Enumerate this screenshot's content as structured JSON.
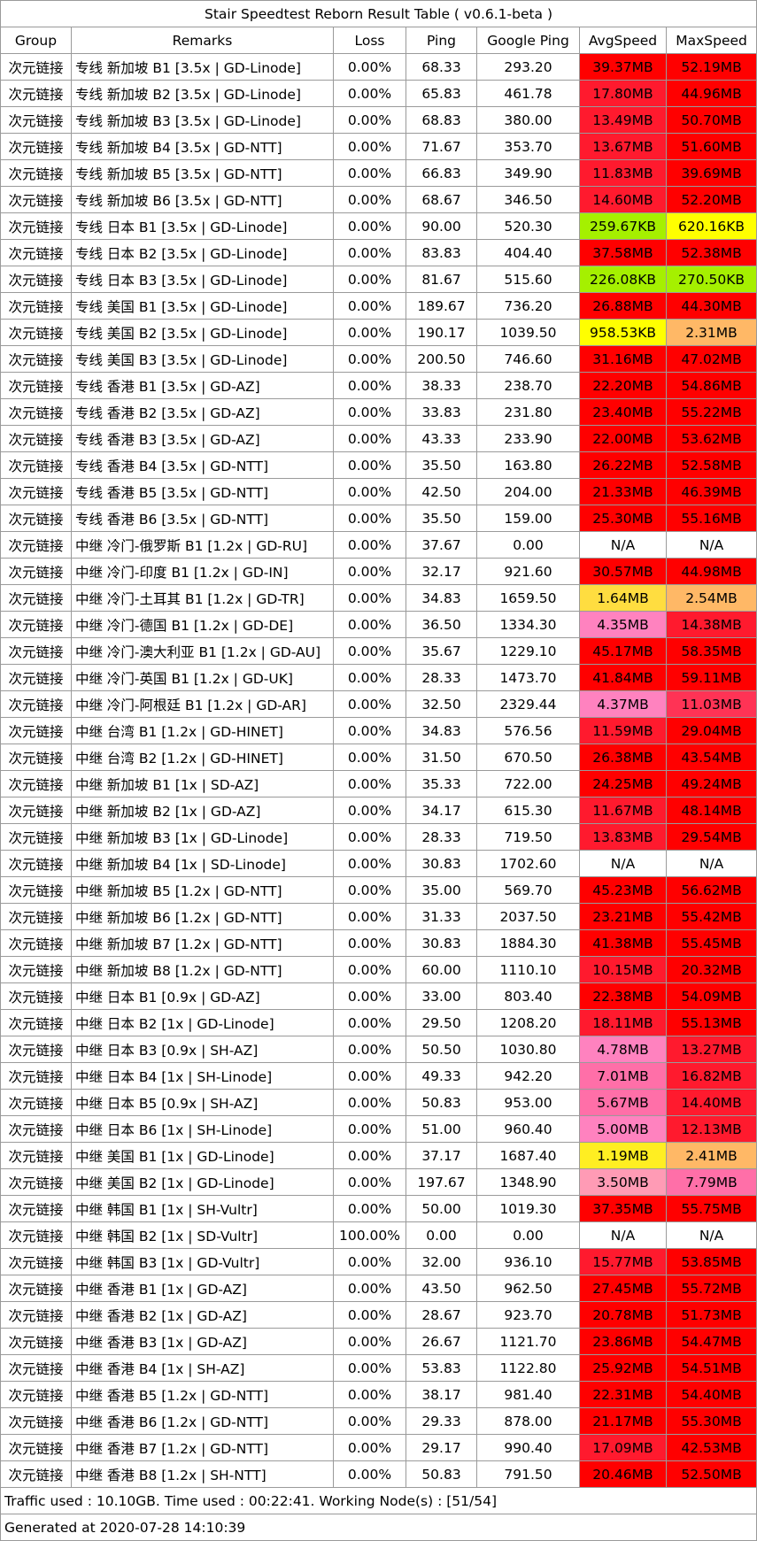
{
  "title": "Stair Speedtest Reborn Result Table ( v0.6.1-beta )",
  "headers": [
    "Group",
    "Remarks",
    "Loss",
    "Ping",
    "Google Ping",
    "AvgSpeed",
    "MaxSpeed"
  ],
  "colors": {
    "red": "#ff0000",
    "red2": "#ff1a2e",
    "green": "#a5f000",
    "yellow": "#ffff00",
    "gold": "#ffdd40",
    "orange": "#ffb866",
    "pink": "#ff82bf",
    "pink2": "#ff6fa8",
    "lightpink": "#ff9bb5"
  },
  "rows": [
    {
      "group": "次元链接",
      "remarks": "专线 新加坡 B1 [3.5x | GD-Linode]",
      "loss": "0.00%",
      "ping": "68.33",
      "gping": "293.20",
      "avg": "39.37MB",
      "avg_c": "#ff0000",
      "max": "52.19MB",
      "max_c": "#ff0000"
    },
    {
      "group": "次元链接",
      "remarks": "专线 新加坡 B2 [3.5x | GD-Linode]",
      "loss": "0.00%",
      "ping": "65.83",
      "gping": "461.78",
      "avg": "17.80MB",
      "avg_c": "#ff1a2e",
      "max": "44.96MB",
      "max_c": "#ff0000"
    },
    {
      "group": "次元链接",
      "remarks": "专线 新加坡 B3 [3.5x | GD-Linode]",
      "loss": "0.00%",
      "ping": "68.83",
      "gping": "380.00",
      "avg": "13.49MB",
      "avg_c": "#ff1a2e",
      "max": "50.70MB",
      "max_c": "#ff0000"
    },
    {
      "group": "次元链接",
      "remarks": "专线 新加坡 B4 [3.5x | GD-NTT]",
      "loss": "0.00%",
      "ping": "71.67",
      "gping": "353.70",
      "avg": "13.67MB",
      "avg_c": "#ff1a2e",
      "max": "51.60MB",
      "max_c": "#ff0000"
    },
    {
      "group": "次元链接",
      "remarks": "专线 新加坡 B5 [3.5x | GD-NTT]",
      "loss": "0.00%",
      "ping": "66.83",
      "gping": "349.90",
      "avg": "11.83MB",
      "avg_c": "#ff1a2e",
      "max": "39.69MB",
      "max_c": "#ff0000"
    },
    {
      "group": "次元链接",
      "remarks": "专线 新加坡 B6 [3.5x | GD-NTT]",
      "loss": "0.00%",
      "ping": "68.67",
      "gping": "346.50",
      "avg": "14.60MB",
      "avg_c": "#ff1a2e",
      "max": "52.20MB",
      "max_c": "#ff0000"
    },
    {
      "group": "次元链接",
      "remarks": "专线 日本 B1 [3.5x | GD-Linode]",
      "loss": "0.00%",
      "ping": "90.00",
      "gping": "520.30",
      "avg": "259.67KB",
      "avg_c": "#a5f000",
      "max": "620.16KB",
      "max_c": "#ffff00"
    },
    {
      "group": "次元链接",
      "remarks": "专线 日本 B2 [3.5x | GD-Linode]",
      "loss": "0.00%",
      "ping": "83.83",
      "gping": "404.40",
      "avg": "37.58MB",
      "avg_c": "#ff0000",
      "max": "52.38MB",
      "max_c": "#ff0000"
    },
    {
      "group": "次元链接",
      "remarks": "专线 日本 B3 [3.5x | GD-Linode]",
      "loss": "0.00%",
      "ping": "81.67",
      "gping": "515.60",
      "avg": "226.08KB",
      "avg_c": "#a5f000",
      "max": "270.50KB",
      "max_c": "#a5f000"
    },
    {
      "group": "次元链接",
      "remarks": "专线 美国 B1 [3.5x | GD-Linode]",
      "loss": "0.00%",
      "ping": "189.67",
      "gping": "736.20",
      "avg": "26.88MB",
      "avg_c": "#ff0000",
      "max": "44.30MB",
      "max_c": "#ff0000"
    },
    {
      "group": "次元链接",
      "remarks": "专线 美国 B2 [3.5x | GD-Linode]",
      "loss": "0.00%",
      "ping": "190.17",
      "gping": "1039.50",
      "avg": "958.53KB",
      "avg_c": "#ffff00",
      "max": "2.31MB",
      "max_c": "#ffb866"
    },
    {
      "group": "次元链接",
      "remarks": "专线 美国 B3 [3.5x | GD-Linode]",
      "loss": "0.00%",
      "ping": "200.50",
      "gping": "746.60",
      "avg": "31.16MB",
      "avg_c": "#ff0000",
      "max": "47.02MB",
      "max_c": "#ff0000"
    },
    {
      "group": "次元链接",
      "remarks": "专线 香港 B1 [3.5x | GD-AZ]",
      "loss": "0.00%",
      "ping": "38.33",
      "gping": "238.70",
      "avg": "22.20MB",
      "avg_c": "#ff0000",
      "max": "54.86MB",
      "max_c": "#ff0000"
    },
    {
      "group": "次元链接",
      "remarks": "专线 香港 B2 [3.5x | GD-AZ]",
      "loss": "0.00%",
      "ping": "33.83",
      "gping": "231.80",
      "avg": "23.40MB",
      "avg_c": "#ff0000",
      "max": "55.22MB",
      "max_c": "#ff0000"
    },
    {
      "group": "次元链接",
      "remarks": "专线 香港 B3 [3.5x | GD-AZ]",
      "loss": "0.00%",
      "ping": "43.33",
      "gping": "233.90",
      "avg": "22.00MB",
      "avg_c": "#ff0000",
      "max": "53.62MB",
      "max_c": "#ff0000"
    },
    {
      "group": "次元链接",
      "remarks": "专线 香港 B4 [3.5x | GD-NTT]",
      "loss": "0.00%",
      "ping": "35.50",
      "gping": "163.80",
      "avg": "26.22MB",
      "avg_c": "#ff0000",
      "max": "52.58MB",
      "max_c": "#ff0000"
    },
    {
      "group": "次元链接",
      "remarks": "专线 香港 B5 [3.5x | GD-NTT]",
      "loss": "0.00%",
      "ping": "42.50",
      "gping": "204.00",
      "avg": "21.33MB",
      "avg_c": "#ff0000",
      "max": "46.39MB",
      "max_c": "#ff0000"
    },
    {
      "group": "次元链接",
      "remarks": "专线 香港 B6 [3.5x | GD-NTT]",
      "loss": "0.00%",
      "ping": "35.50",
      "gping": "159.00",
      "avg": "25.30MB",
      "avg_c": "#ff0000",
      "max": "55.16MB",
      "max_c": "#ff0000"
    },
    {
      "group": "次元链接",
      "remarks": "中继 冷门-俄罗斯 B1 [1.2x | GD-RU]",
      "loss": "0.00%",
      "ping": "37.67",
      "gping": "0.00",
      "avg": "N/A",
      "avg_c": "#ffffff",
      "max": "N/A",
      "max_c": "#ffffff"
    },
    {
      "group": "次元链接",
      "remarks": "中继 冷门-印度 B1 [1.2x | GD-IN]",
      "loss": "0.00%",
      "ping": "32.17",
      "gping": "921.60",
      "avg": "30.57MB",
      "avg_c": "#ff0000",
      "max": "44.98MB",
      "max_c": "#ff0000"
    },
    {
      "group": "次元链接",
      "remarks": "中继 冷门-土耳其 B1 [1.2x | GD-TR]",
      "loss": "0.00%",
      "ping": "34.83",
      "gping": "1659.50",
      "avg": "1.64MB",
      "avg_c": "#ffdd40",
      "max": "2.54MB",
      "max_c": "#ffb866"
    },
    {
      "group": "次元链接",
      "remarks": "中继 冷门-德国 B1 [1.2x | GD-DE]",
      "loss": "0.00%",
      "ping": "36.50",
      "gping": "1334.30",
      "avg": "4.35MB",
      "avg_c": "#ff82bf",
      "max": "14.38MB",
      "max_c": "#ff1a2e"
    },
    {
      "group": "次元链接",
      "remarks": "中继 冷门-澳大利亚 B1 [1.2x | GD-AU]",
      "loss": "0.00%",
      "ping": "35.67",
      "gping": "1229.10",
      "avg": "45.17MB",
      "avg_c": "#ff0000",
      "max": "58.35MB",
      "max_c": "#ff0000"
    },
    {
      "group": "次元链接",
      "remarks": "中继 冷门-英国 B1 [1.2x | GD-UK]",
      "loss": "0.00%",
      "ping": "28.33",
      "gping": "1473.70",
      "avg": "41.84MB",
      "avg_c": "#ff0000",
      "max": "59.11MB",
      "max_c": "#ff0000"
    },
    {
      "group": "次元链接",
      "remarks": "中继 冷门-阿根廷 B1 [1.2x | GD-AR]",
      "loss": "0.00%",
      "ping": "32.50",
      "gping": "2329.44",
      "avg": "4.37MB",
      "avg_c": "#ff82bf",
      "max": "11.03MB",
      "max_c": "#ff3355"
    },
    {
      "group": "次元链接",
      "remarks": "中继 台湾 B1 [1.2x | GD-HINET]",
      "loss": "0.00%",
      "ping": "34.83",
      "gping": "576.56",
      "avg": "11.59MB",
      "avg_c": "#ff1a2e",
      "max": "29.04MB",
      "max_c": "#ff0000"
    },
    {
      "group": "次元链接",
      "remarks": "中继 台湾 B2 [1.2x | GD-HINET]",
      "loss": "0.00%",
      "ping": "31.50",
      "gping": "670.50",
      "avg": "26.38MB",
      "avg_c": "#ff0000",
      "max": "43.54MB",
      "max_c": "#ff0000"
    },
    {
      "group": "次元链接",
      "remarks": "中继 新加坡 B1 [1x | SD-AZ]",
      "loss": "0.00%",
      "ping": "35.33",
      "gping": "722.00",
      "avg": "24.25MB",
      "avg_c": "#ff0000",
      "max": "49.24MB",
      "max_c": "#ff0000"
    },
    {
      "group": "次元链接",
      "remarks": "中继 新加坡 B2 [1x | GD-AZ]",
      "loss": "0.00%",
      "ping": "34.17",
      "gping": "615.30",
      "avg": "11.67MB",
      "avg_c": "#ff1a2e",
      "max": "48.14MB",
      "max_c": "#ff0000"
    },
    {
      "group": "次元链接",
      "remarks": "中继 新加坡 B3 [1x | GD-Linode]",
      "loss": "0.00%",
      "ping": "28.33",
      "gping": "719.50",
      "avg": "13.83MB",
      "avg_c": "#ff1a2e",
      "max": "29.54MB",
      "max_c": "#ff0000"
    },
    {
      "group": "次元链接",
      "remarks": "中继 新加坡 B4 [1x | SD-Linode]",
      "loss": "0.00%",
      "ping": "30.83",
      "gping": "1702.60",
      "avg": "N/A",
      "avg_c": "#ffffff",
      "max": "N/A",
      "max_c": "#ffffff"
    },
    {
      "group": "次元链接",
      "remarks": "中继 新加坡 B5 [1.2x | GD-NTT]",
      "loss": "0.00%",
      "ping": "35.00",
      "gping": "569.70",
      "avg": "45.23MB",
      "avg_c": "#ff0000",
      "max": "56.62MB",
      "max_c": "#ff0000"
    },
    {
      "group": "次元链接",
      "remarks": "中继 新加坡 B6 [1.2x | GD-NTT]",
      "loss": "0.00%",
      "ping": "31.33",
      "gping": "2037.50",
      "avg": "23.21MB",
      "avg_c": "#ff0000",
      "max": "55.42MB",
      "max_c": "#ff0000"
    },
    {
      "group": "次元链接",
      "remarks": "中继 新加坡 B7 [1.2x | GD-NTT]",
      "loss": "0.00%",
      "ping": "30.83",
      "gping": "1884.30",
      "avg": "41.38MB",
      "avg_c": "#ff0000",
      "max": "55.45MB",
      "max_c": "#ff0000"
    },
    {
      "group": "次元链接",
      "remarks": "中继 新加坡 B8 [1.2x | GD-NTT]",
      "loss": "0.00%",
      "ping": "60.00",
      "gping": "1110.10",
      "avg": "10.15MB",
      "avg_c": "#ff1a2e",
      "max": "20.32MB",
      "max_c": "#ff0000"
    },
    {
      "group": "次元链接",
      "remarks": "中继 日本 B1 [0.9x | GD-AZ]",
      "loss": "0.00%",
      "ping": "33.00",
      "gping": "803.40",
      "avg": "22.38MB",
      "avg_c": "#ff0000",
      "max": "54.09MB",
      "max_c": "#ff0000"
    },
    {
      "group": "次元链接",
      "remarks": "中继 日本 B2 [1x | GD-Linode]",
      "loss": "0.00%",
      "ping": "29.50",
      "gping": "1208.20",
      "avg": "18.11MB",
      "avg_c": "#ff1a2e",
      "max": "55.13MB",
      "max_c": "#ff0000"
    },
    {
      "group": "次元链接",
      "remarks": "中继 日本 B3 [0.9x | SH-AZ]",
      "loss": "0.00%",
      "ping": "50.50",
      "gping": "1030.80",
      "avg": "4.78MB",
      "avg_c": "#ff82bf",
      "max": "13.27MB",
      "max_c": "#ff1a2e"
    },
    {
      "group": "次元链接",
      "remarks": "中继 日本 B4 [1x | SH-Linode]",
      "loss": "0.00%",
      "ping": "49.33",
      "gping": "942.20",
      "avg": "7.01MB",
      "avg_c": "#ff6fa8",
      "max": "16.82MB",
      "max_c": "#ff1a2e"
    },
    {
      "group": "次元链接",
      "remarks": "中继 日本 B5 [0.9x | SH-AZ]",
      "loss": "0.00%",
      "ping": "50.83",
      "gping": "953.00",
      "avg": "5.67MB",
      "avg_c": "#ff6fa8",
      "max": "14.40MB",
      "max_c": "#ff1a2e"
    },
    {
      "group": "次元链接",
      "remarks": "中继 日本 B6 [1x | SH-Linode]",
      "loss": "0.00%",
      "ping": "51.00",
      "gping": "960.40",
      "avg": "5.00MB",
      "avg_c": "#ff82bf",
      "max": "12.13MB",
      "max_c": "#ff1a2e"
    },
    {
      "group": "次元链接",
      "remarks": "中继 美国 B1 [1x | GD-Linode]",
      "loss": "0.00%",
      "ping": "37.17",
      "gping": "1687.40",
      "avg": "1.19MB",
      "avg_c": "#ffee22",
      "max": "2.41MB",
      "max_c": "#ffb866"
    },
    {
      "group": "次元链接",
      "remarks": "中继 美国 B2 [1x | GD-Linode]",
      "loss": "0.00%",
      "ping": "197.67",
      "gping": "1348.90",
      "avg": "3.50MB",
      "avg_c": "#ff9bb5",
      "max": "7.79MB",
      "max_c": "#ff6fa8"
    },
    {
      "group": "次元链接",
      "remarks": "中继 韩国 B1 [1x | SH-Vultr]",
      "loss": "0.00%",
      "ping": "50.00",
      "gping": "1019.30",
      "avg": "37.35MB",
      "avg_c": "#ff0000",
      "max": "55.75MB",
      "max_c": "#ff0000"
    },
    {
      "group": "次元链接",
      "remarks": "中继 韩国 B2 [1x | SD-Vultr]",
      "loss": "100.00%",
      "ping": "0.00",
      "gping": "0.00",
      "avg": "N/A",
      "avg_c": "#ffffff",
      "max": "N/A",
      "max_c": "#ffffff"
    },
    {
      "group": "次元链接",
      "remarks": "中继 韩国 B3 [1x | GD-Vultr]",
      "loss": "0.00%",
      "ping": "32.00",
      "gping": "936.10",
      "avg": "15.77MB",
      "avg_c": "#ff1a2e",
      "max": "53.85MB",
      "max_c": "#ff0000"
    },
    {
      "group": "次元链接",
      "remarks": "中继 香港 B1 [1x | GD-AZ]",
      "loss": "0.00%",
      "ping": "43.50",
      "gping": "962.50",
      "avg": "27.45MB",
      "avg_c": "#ff0000",
      "max": "55.72MB",
      "max_c": "#ff0000"
    },
    {
      "group": "次元链接",
      "remarks": "中继 香港 B2 [1x | GD-AZ]",
      "loss": "0.00%",
      "ping": "28.67",
      "gping": "923.70",
      "avg": "20.78MB",
      "avg_c": "#ff0000",
      "max": "51.73MB",
      "max_c": "#ff0000"
    },
    {
      "group": "次元链接",
      "remarks": "中继 香港 B3 [1x | GD-AZ]",
      "loss": "0.00%",
      "ping": "26.67",
      "gping": "1121.70",
      "avg": "23.86MB",
      "avg_c": "#ff0000",
      "max": "54.47MB",
      "max_c": "#ff0000"
    },
    {
      "group": "次元链接",
      "remarks": "中继 香港 B4 [1x | SH-AZ]",
      "loss": "0.00%",
      "ping": "53.83",
      "gping": "1122.80",
      "avg": "25.92MB",
      "avg_c": "#ff0000",
      "max": "54.51MB",
      "max_c": "#ff0000"
    },
    {
      "group": "次元链接",
      "remarks": "中继 香港 B5 [1.2x | GD-NTT]",
      "loss": "0.00%",
      "ping": "38.17",
      "gping": "981.40",
      "avg": "22.31MB",
      "avg_c": "#ff0000",
      "max": "54.40MB",
      "max_c": "#ff0000"
    },
    {
      "group": "次元链接",
      "remarks": "中继 香港 B6 [1.2x | GD-NTT]",
      "loss": "0.00%",
      "ping": "29.33",
      "gping": "878.00",
      "avg": "21.17MB",
      "avg_c": "#ff0000",
      "max": "55.30MB",
      "max_c": "#ff0000"
    },
    {
      "group": "次元链接",
      "remarks": "中继 香港 B7 [1.2x | GD-NTT]",
      "loss": "0.00%",
      "ping": "29.17",
      "gping": "990.40",
      "avg": "17.09MB",
      "avg_c": "#ff1a2e",
      "max": "42.53MB",
      "max_c": "#ff0000"
    },
    {
      "group": "次元链接",
      "remarks": "中继 香港 B8 [1.2x | SH-NTT]",
      "loss": "0.00%",
      "ping": "50.83",
      "gping": "791.50",
      "avg": "20.46MB",
      "avg_c": "#ff0000",
      "max": "52.50MB",
      "max_c": "#ff0000"
    }
  ],
  "footer": {
    "traffic": "Traffic used : 10.10GB. Time used : 00:22:41. Working Node(s) : [51/54]",
    "generated": "Generated at 2020-07-28 14:10:39"
  }
}
